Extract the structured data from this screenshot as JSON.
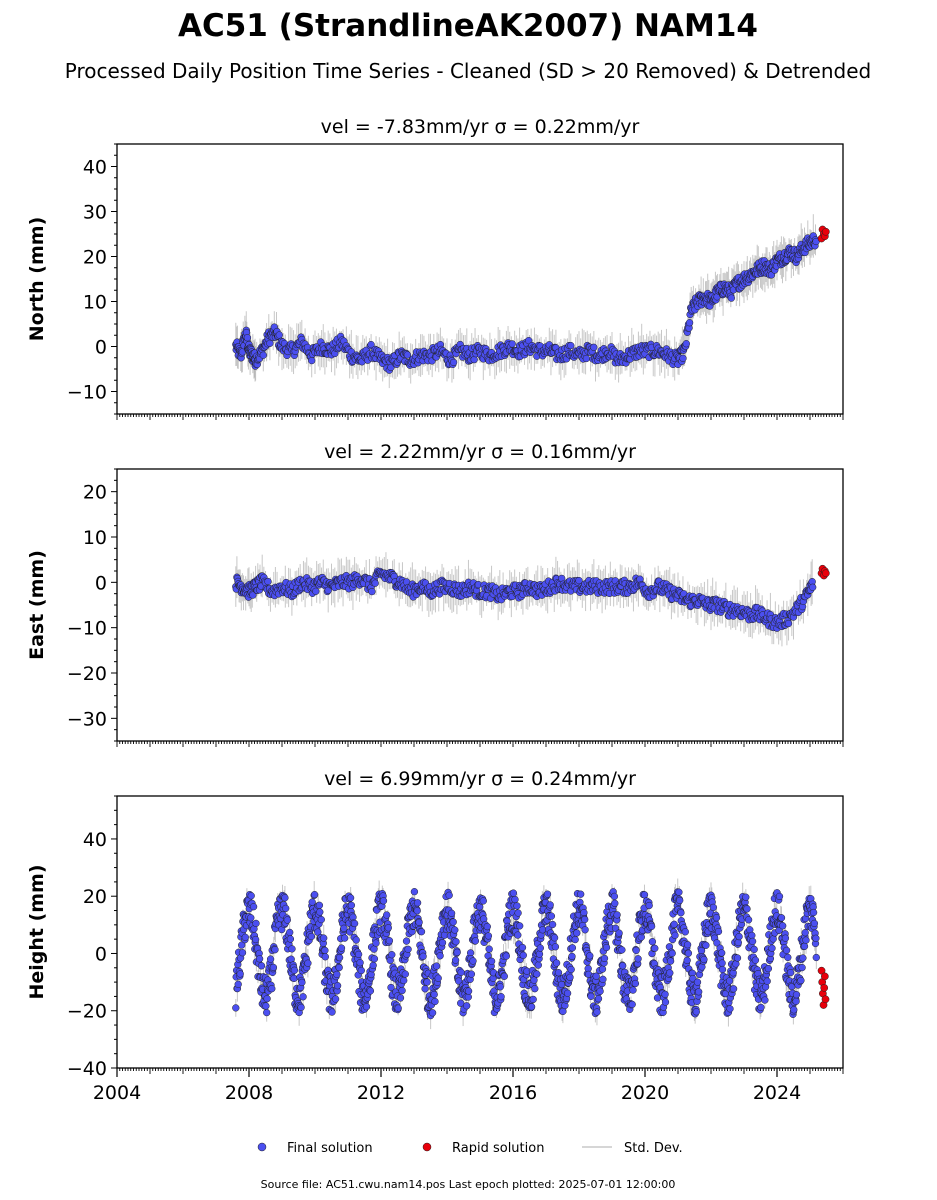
{
  "title": "AC51 (StrandlineAK2007) NAM14",
  "subtitle": "Processed Daily Position Time Series - Cleaned (SD > 20 Removed) & Detrended",
  "source_text": "Source file: AC51.cwu.nam14.pos  Last epoch plotted: 2025-07-01 12:00:00",
  "colors": {
    "final": "#4b4ff0",
    "rapid": "#e8000b",
    "stddev": "#b0b0b0",
    "edge": "#202020"
  },
  "legend": [
    {
      "label": "Final solution",
      "color": "#4b4ff0",
      "marker": "circle"
    },
    {
      "label": "Rapid solution",
      "color": "#e8000b",
      "marker": "circle"
    },
    {
      "label": "Std. Dev.",
      "color": "#c8c8c8",
      "marker": "line"
    }
  ],
  "chart_data": [
    {
      "type": "scatter",
      "panel_title": "vel = -7.83mm/yr   σ = 0.22mm/yr",
      "ylabel": "North (mm)",
      "xlim": [
        2004,
        2026
      ],
      "ylim": [
        -15,
        45
      ],
      "yticks": [
        -10,
        0,
        10,
        20,
        30,
        40
      ],
      "xticks": [],
      "series": [
        {
          "name": "Final solution",
          "color": "#4b4ff0",
          "x": [
            2007.6,
            2007.75,
            2007.9,
            2008.0,
            2008.1,
            2008.2,
            2008.4,
            2008.6,
            2008.8,
            2009.0,
            2009.3,
            2009.6,
            2009.9,
            2010.2,
            2010.5,
            2010.8,
            2011.1,
            2011.4,
            2011.7,
            2012.0,
            2012.3,
            2012.6,
            2012.9,
            2013.2,
            2013.5,
            2013.8,
            2014.1,
            2014.4,
            2014.7,
            2015.0,
            2015.3,
            2015.6,
            2015.9,
            2016.2,
            2016.5,
            2016.8,
            2017.1,
            2017.4,
            2017.7,
            2018.0,
            2018.3,
            2018.6,
            2018.9,
            2019.2,
            2019.5,
            2019.8,
            2020.1,
            2020.4,
            2020.7,
            2021.0,
            2021.2,
            2021.4,
            2021.6,
            2021.8,
            2022.0,
            2022.2,
            2022.4,
            2022.6,
            2022.8,
            2023.0,
            2023.2,
            2023.4,
            2023.6,
            2023.8,
            2024.0,
            2024.2,
            2024.4,
            2024.6,
            2024.8,
            2025.0,
            2025.2
          ],
          "y": [
            0,
            -2,
            3,
            -1,
            -2,
            -3,
            -1,
            2,
            3,
            0,
            -1,
            1,
            -2,
            0,
            -1,
            1,
            -2,
            -3,
            -1,
            -3,
            -4,
            -2,
            -3,
            -2,
            -2,
            -1,
            -3,
            -1,
            -2,
            -1,
            -2,
            -1,
            0,
            -1,
            0,
            -1,
            -1,
            -2,
            -1,
            -2,
            -1,
            -2,
            -1,
            -3,
            -2,
            -1,
            -1,
            -1,
            -2,
            -3,
            -1,
            8,
            10,
            11,
            10,
            12,
            13,
            12,
            14,
            15,
            16,
            17,
            18,
            17,
            19,
            20,
            21,
            20,
            22,
            23,
            24
          ]
        },
        {
          "name": "Rapid solution",
          "color": "#e8000b",
          "x": [
            2025.35,
            2025.38,
            2025.42,
            2025.45,
            2025.48
          ],
          "y": [
            24,
            26,
            25,
            24.5,
            25.5
          ]
        }
      ]
    },
    {
      "type": "scatter",
      "panel_title": "vel = 2.22mm/yr   σ = 0.16mm/yr",
      "ylabel": "East (mm)",
      "xlim": [
        2004,
        2026
      ],
      "ylim": [
        -35,
        25
      ],
      "yticks": [
        -30,
        -20,
        -10,
        0,
        10,
        20
      ],
      "xticks": [],
      "series": [
        {
          "name": "Final solution",
          "color": "#4b4ff0",
          "x": [
            2007.6,
            2007.8,
            2008.0,
            2008.2,
            2008.4,
            2008.7,
            2009.0,
            2009.3,
            2009.6,
            2009.9,
            2010.2,
            2010.5,
            2010.8,
            2011.1,
            2011.4,
            2011.7,
            2012.0,
            2012.3,
            2012.6,
            2012.9,
            2013.2,
            2013.5,
            2013.8,
            2014.1,
            2014.4,
            2014.7,
            2015.0,
            2015.3,
            2015.6,
            2015.9,
            2016.2,
            2016.5,
            2016.8,
            2017.1,
            2017.4,
            2017.7,
            2018.0,
            2018.3,
            2018.6,
            2018.9,
            2019.2,
            2019.5,
            2019.8,
            2020.1,
            2020.4,
            2020.7,
            2021.0,
            2021.3,
            2021.6,
            2021.9,
            2022.2,
            2022.5,
            2022.8,
            2023.1,
            2023.4,
            2023.7,
            2024.0,
            2024.3,
            2024.6,
            2024.9,
            2025.1
          ],
          "y": [
            0,
            -1,
            -2,
            -1,
            0,
            -2,
            -1,
            -2,
            0,
            -1,
            0,
            -1,
            0,
            0,
            1,
            -1,
            2,
            1,
            0,
            -2,
            -1,
            -2,
            -1,
            -1,
            -2,
            -1,
            -2,
            -2,
            -3,
            -2,
            -2,
            -1,
            -2,
            -1,
            0,
            -1,
            -1,
            -1,
            -1,
            -1,
            -1,
            -1,
            0,
            -2,
            -1,
            -2,
            -3,
            -4,
            -4,
            -5,
            -5,
            -6,
            -6,
            -7,
            -7,
            -8,
            -9,
            -8,
            -6,
            -3,
            0
          ]
        },
        {
          "name": "Rapid solution",
          "color": "#e8000b",
          "x": [
            2025.35,
            2025.38,
            2025.42,
            2025.45,
            2025.48
          ],
          "y": [
            2,
            3,
            1.5,
            2.5,
            2
          ]
        }
      ]
    },
    {
      "type": "scatter",
      "panel_title": "vel = 6.99mm/yr   σ = 0.24mm/yr",
      "ylabel": "Height (mm)",
      "xlim": [
        2004,
        2026
      ],
      "ylim": [
        -40,
        55
      ],
      "yticks": [
        -40,
        -20,
        0,
        20,
        40
      ],
      "xticks": [
        "2004",
        "2008",
        "2012",
        "2016",
        "2020",
        "2024"
      ],
      "xtick_values": [
        2004,
        2008,
        2012,
        2016,
        2020,
        2024
      ],
      "series": [
        {
          "name": "Final solution",
          "color": "#4b4ff0",
          "seasonal": {
            "start": 2007.6,
            "end": 2025.2,
            "amplitude_mm": 15,
            "peak_phase_yr": 0.0
          }
        },
        {
          "name": "Rapid solution",
          "color": "#e8000b",
          "x": [
            2025.35,
            2025.37,
            2025.39,
            2025.41,
            2025.43,
            2025.45,
            2025.47
          ],
          "y": [
            -6,
            -10,
            -14,
            -18,
            -12,
            -8,
            -16
          ]
        }
      ]
    }
  ]
}
